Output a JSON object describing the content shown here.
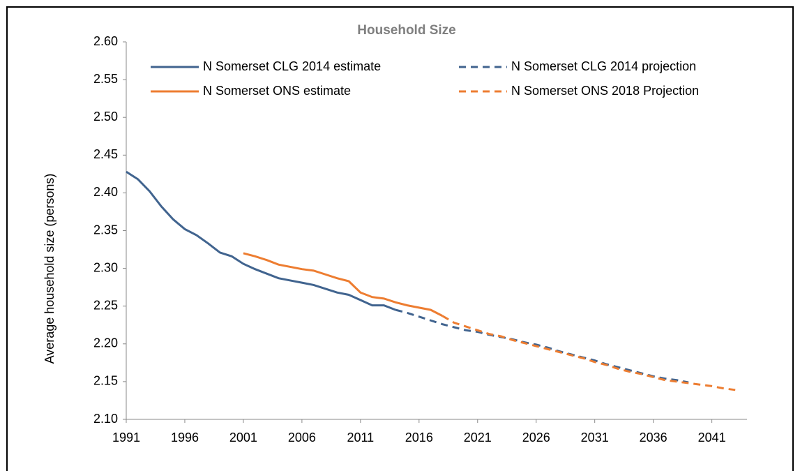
{
  "chart_data": {
    "type": "line",
    "title": "Household Size",
    "y_label": "Average household size (persons)",
    "x": [
      1991,
      1992,
      1993,
      1994,
      1995,
      1996,
      1997,
      1998,
      1999,
      2000,
      2001,
      2002,
      2003,
      2004,
      2005,
      2006,
      2007,
      2008,
      2009,
      2010,
      2011,
      2012,
      2013,
      2014,
      2015,
      2016,
      2017,
      2018,
      2019,
      2020,
      2021,
      2022,
      2023,
      2024,
      2025,
      2026,
      2027,
      2028,
      2029,
      2030,
      2031,
      2032,
      2033,
      2034,
      2035,
      2036,
      2037,
      2038,
      2039,
      2040,
      2041,
      2042,
      2043
    ],
    "series": [
      {
        "name": "N Somerset CLG 2014 estimate",
        "color": "#41648f",
        "line_style": "solid",
        "values": [
          2.428,
          2.418,
          2.402,
          2.382,
          2.365,
          2.352,
          2.344,
          2.333,
          2.321,
          2.316,
          2.306,
          2.299,
          2.293,
          2.287,
          2.284,
          2.281,
          2.278,
          2.273,
          2.268,
          2.265,
          2.258,
          2.251,
          2.251,
          2.245,
          null,
          null,
          null,
          null,
          null,
          null,
          null,
          null,
          null,
          null,
          null,
          null,
          null,
          null,
          null,
          null,
          null,
          null,
          null,
          null,
          null,
          null,
          null,
          null,
          null,
          null,
          null,
          null,
          null
        ]
      },
      {
        "name": "N Somerset CLG 2014 projection",
        "color": "#41648f",
        "line_style": "dashed",
        "values": [
          null,
          null,
          null,
          null,
          null,
          null,
          null,
          null,
          null,
          null,
          null,
          null,
          null,
          null,
          null,
          null,
          null,
          null,
          null,
          null,
          null,
          null,
          null,
          2.245,
          2.241,
          2.236,
          2.231,
          2.226,
          2.222,
          2.218,
          2.216,
          2.212,
          2.209,
          2.206,
          2.202,
          2.199,
          2.195,
          2.19,
          2.186,
          2.182,
          2.178,
          2.173,
          2.169,
          2.165,
          2.161,
          2.157,
          2.154,
          2.152,
          2.149,
          null,
          null,
          null,
          null
        ]
      },
      {
        "name": "N Somerset ONS estimate",
        "color": "#ed7d31",
        "line_style": "solid",
        "values": [
          null,
          null,
          null,
          null,
          null,
          null,
          null,
          null,
          null,
          null,
          2.32,
          2.316,
          2.311,
          2.305,
          2.302,
          2.299,
          2.297,
          2.292,
          2.287,
          2.283,
          2.268,
          2.262,
          2.26,
          2.255,
          2.251,
          2.248,
          2.245,
          2.237,
          null,
          null,
          null,
          null,
          null,
          null,
          null,
          null,
          null,
          null,
          null,
          null,
          null,
          null,
          null,
          null,
          null,
          null,
          null,
          null,
          null,
          null,
          null,
          null,
          null
        ]
      },
      {
        "name": "N Somerset ONS 2018 Projection",
        "color": "#ed7d31",
        "line_style": "dashed",
        "values": [
          null,
          null,
          null,
          null,
          null,
          null,
          null,
          null,
          null,
          null,
          null,
          null,
          null,
          null,
          null,
          null,
          null,
          null,
          null,
          null,
          null,
          null,
          null,
          null,
          null,
          null,
          null,
          2.237,
          2.228,
          2.223,
          2.218,
          2.213,
          2.21,
          2.205,
          2.201,
          2.197,
          2.193,
          2.189,
          2.185,
          2.181,
          2.176,
          2.172,
          2.167,
          2.163,
          2.16,
          2.156,
          2.152,
          2.15,
          2.148,
          2.146,
          2.144,
          2.141,
          2.139
        ]
      }
    ],
    "xlim": [
      1991,
      2044
    ],
    "xticks": [
      1991,
      1996,
      2001,
      2006,
      2011,
      2016,
      2021,
      2026,
      2031,
      2036,
      2041
    ],
    "ylim": [
      2.1,
      2.6
    ],
    "yticks": [
      {
        "value": 2.1,
        "label": "2.10"
      },
      {
        "value": 2.15,
        "label": "2.15"
      },
      {
        "value": 2.2,
        "label": "2.20"
      },
      2.25,
      {
        "value": 2.3,
        "label": "2.30"
      },
      2.35,
      {
        "value": 2.4,
        "label": "2.40"
      },
      2.45,
      {
        "value": 2.5,
        "label": "2.50"
      },
      2.55,
      {
        "value": 2.6,
        "label": "2.60"
      }
    ],
    "grid": false,
    "legend": "top"
  }
}
